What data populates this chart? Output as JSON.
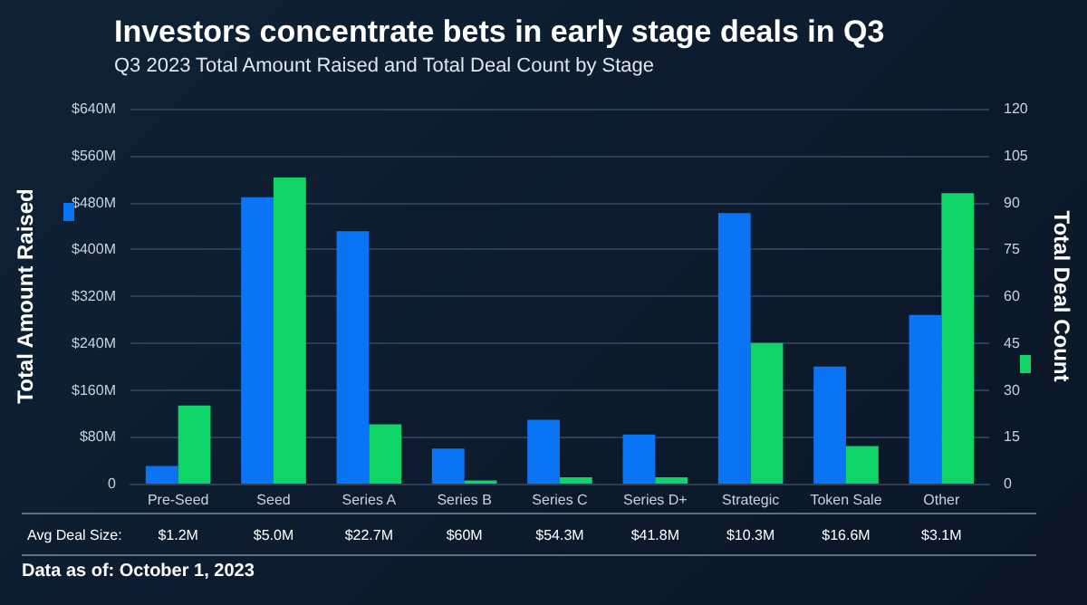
{
  "chart_data": {
    "type": "bar",
    "title": "Investors concentrate bets in early stage deals in Q3",
    "subtitle": "Q3 2023 Total Amount Raised and Total Deal Count by Stage",
    "ylabel": "Total Amount Raised",
    "y2label": "Total Deal Count",
    "categories": [
      "Pre-Seed",
      "Seed",
      "Series A",
      "Series B",
      "Series C",
      "Series D+",
      "Strategic",
      "Token Sale",
      "Other"
    ],
    "series": [
      {
        "color": "#0a74f5",
        "values": [
          30,
          489,
          431,
          60,
          109,
          84,
          462,
          200,
          288
        ]
      },
      {
        "color": "#0fd467",
        "axis": "y2",
        "values": [
          25,
          98,
          19,
          1,
          2,
          2,
          45,
          12,
          93
        ]
      }
    ],
    "ylim": [
      0,
      640
    ],
    "yticks": [
      {
        "value": 0,
        "label": "0"
      },
      {
        "value": 80,
        "label": "$80M"
      },
      {
        "value": 160,
        "label": "$160M"
      },
      {
        "value": 240,
        "label": "$240M"
      },
      {
        "value": 320,
        "label": "$320M"
      },
      {
        "value": 400,
        "label": "$400M"
      },
      {
        "value": 480,
        "label": "$480M"
      },
      {
        "value": 560,
        "label": "$560M"
      },
      {
        "value": 640,
        "label": "$640M"
      }
    ],
    "y2lim": [
      0,
      120
    ],
    "y2ticks": [
      0,
      15,
      30,
      45,
      60,
      75,
      90,
      105,
      120
    ],
    "grid": "y",
    "annotations": [
      "Avg Deal Size:",
      "$1.2M",
      "$5.0M",
      "$22.7M",
      "$60M",
      "$54.3M",
      "$41.8M",
      "$10.3M",
      "$16.6M",
      "$3.1M",
      "Data as of: October 1, 2023"
    ]
  }
}
